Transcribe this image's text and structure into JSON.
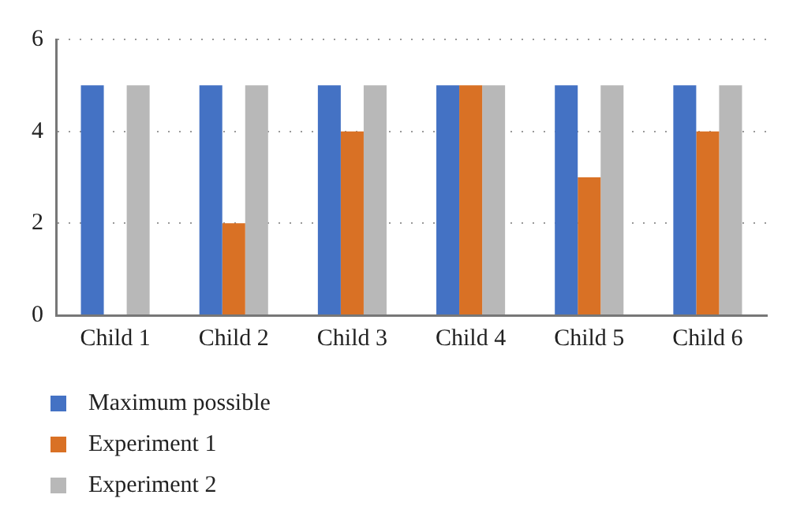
{
  "chart_data": {
    "type": "bar",
    "categories": [
      "Child 1",
      "Child 2",
      "Child 3",
      "Child 4",
      "Child 5",
      "Child 6"
    ],
    "series": [
      {
        "name": "Maximum possible",
        "color": "#4472c4",
        "values": [
          5,
          5,
          5,
          5,
          5,
          5
        ]
      },
      {
        "name": "Experiment 1",
        "color": "#d97125",
        "values": [
          0,
          2,
          4,
          5,
          3,
          4
        ]
      },
      {
        "name": "Experiment 2",
        "color": "#b8b8b8",
        "values": [
          5,
          5,
          5,
          5,
          5,
          5
        ]
      }
    ],
    "ylim": [
      0,
      6
    ],
    "yticks": [
      0,
      2,
      4,
      6
    ],
    "grid": "y",
    "legend": "bottom left"
  }
}
